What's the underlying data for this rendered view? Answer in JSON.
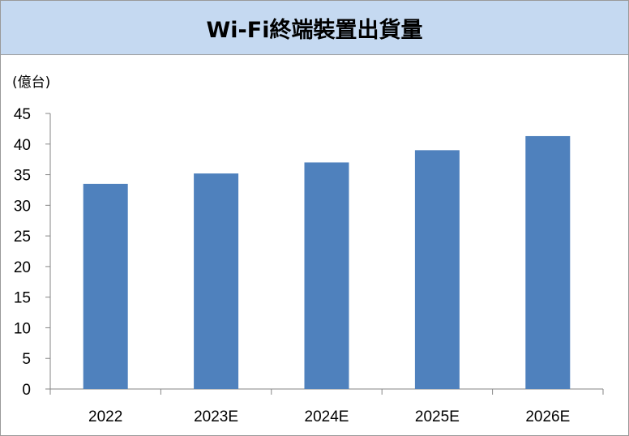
{
  "chart_data": {
    "type": "bar",
    "title": "Wi-Fi終端裝置出貨量",
    "unit_label": "(億台)",
    "categories": [
      "2022",
      "2023E",
      "2024E",
      "2025E",
      "2026E"
    ],
    "values": [
      33.5,
      35.2,
      37.0,
      39.0,
      41.3
    ],
    "ylim": [
      0,
      45
    ],
    "yticks": [
      "0",
      "5",
      "10",
      "15",
      "20",
      "25",
      "30",
      "35",
      "40",
      "45"
    ],
    "xlabel": "",
    "ylabel": "",
    "grid": false,
    "legend": "none",
    "bar_color": "#4f81bd",
    "axis_color": "#868686"
  }
}
